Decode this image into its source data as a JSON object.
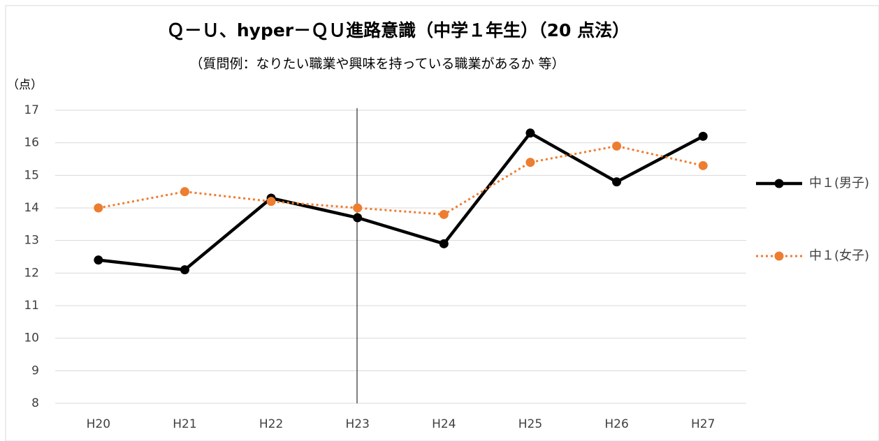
{
  "chart_data": {
    "type": "line",
    "title": "Ｑ－Ｕ、hyper－ＱＵ進路意識（中学１年生）（20 点法）",
    "subtitle": "（質問例：なりたい職業や興味を持っている職業があるか 等）",
    "y_label": "（点）",
    "categories": [
      "H20",
      "H21",
      "H22",
      "H23",
      "H24",
      "H25",
      "H26",
      "H27"
    ],
    "series": [
      {
        "name": "中１(男子)",
        "color": "#000000",
        "style": "solid",
        "values": [
          12.4,
          12.1,
          14.3,
          13.7,
          12.9,
          16.3,
          14.8,
          16.2
        ]
      },
      {
        "name": "中１(女子)",
        "color": "#ed7d31",
        "style": "dotted",
        "values": [
          14.0,
          14.5,
          14.2,
          14.0,
          13.8,
          15.4,
          15.9,
          15.3
        ]
      }
    ],
    "ylim": [
      8,
      17
    ],
    "yticks": [
      8,
      9,
      10,
      11,
      12,
      13,
      14,
      15,
      16,
      17
    ],
    "grid": true,
    "legend": "right"
  }
}
